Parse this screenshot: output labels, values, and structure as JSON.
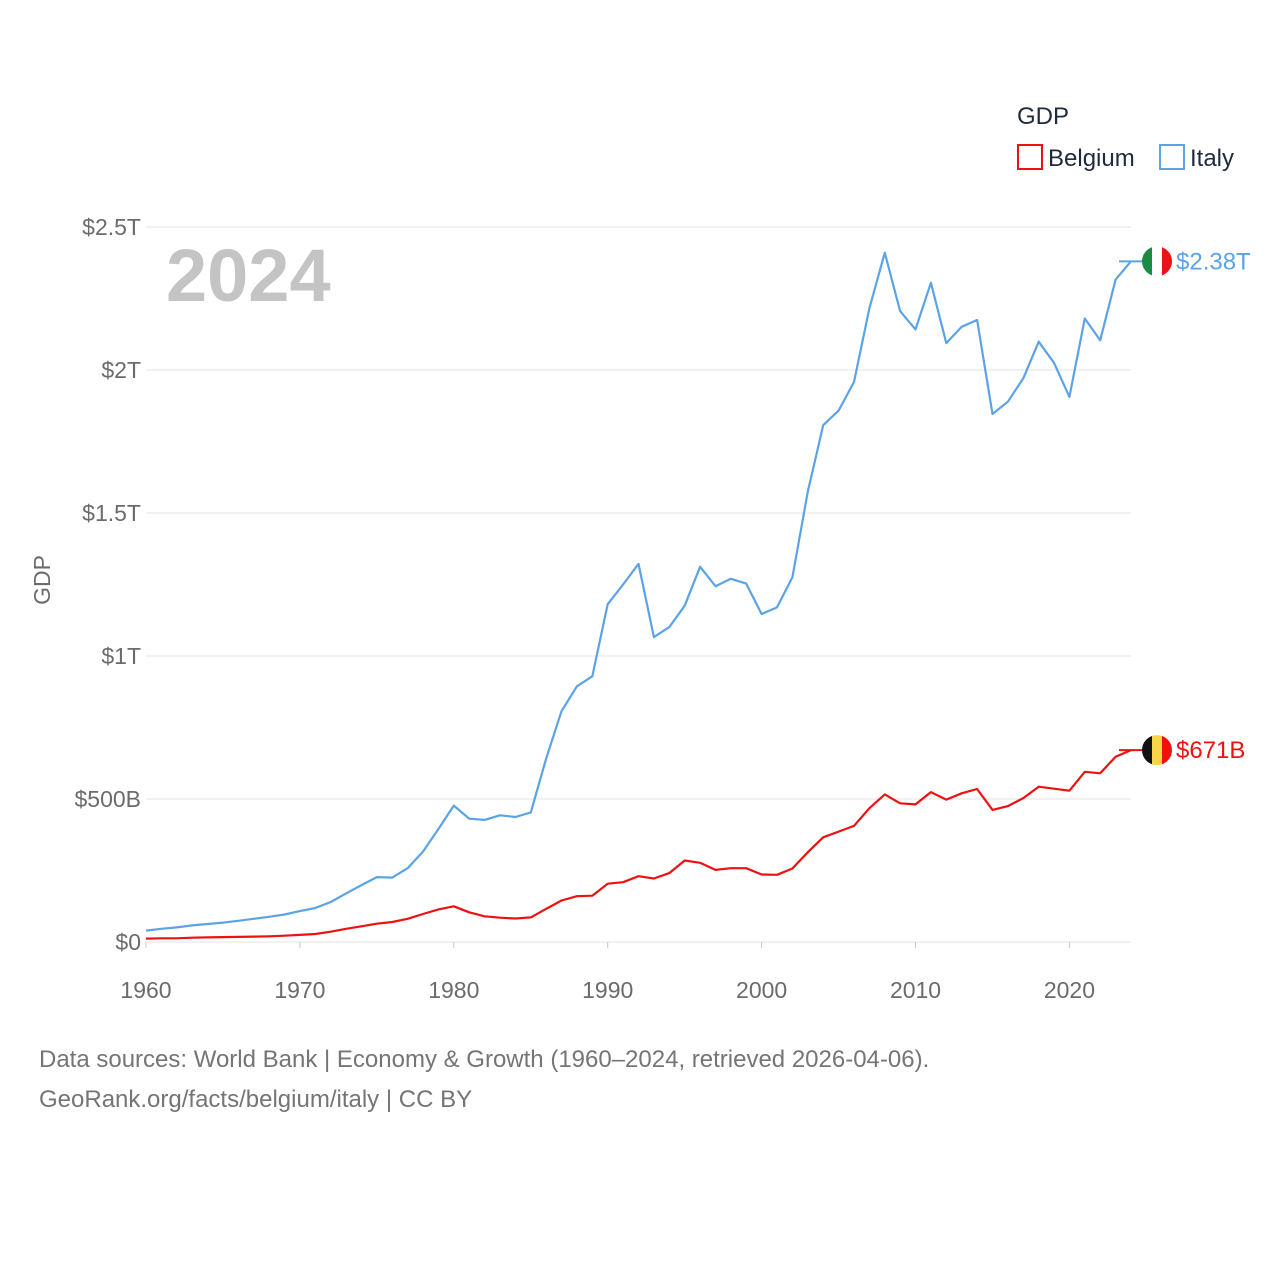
{
  "chart_data": {
    "type": "line",
    "title": "",
    "year_label": "2024",
    "ylabel": "GDP",
    "xlabel": "",
    "xlim": [
      1960,
      2024
    ],
    "ylim": [
      0,
      2500
    ],
    "value_unit": "billion USD",
    "x_ticks": [
      1960,
      1970,
      1980,
      1990,
      2000,
      2010,
      2020
    ],
    "y_ticks": [
      {
        "value": 0,
        "label": "$0"
      },
      {
        "value": 500,
        "label": "$500B"
      },
      {
        "value": 1000,
        "label": "$1T"
      },
      {
        "value": 1500,
        "label": "$1.5T"
      },
      {
        "value": 2000,
        "label": "$2T"
      },
      {
        "value": 2500,
        "label": "$2.5T"
      }
    ],
    "legend": {
      "title": "GDP",
      "position": "top-right"
    },
    "x": [
      1960,
      1961,
      1962,
      1963,
      1964,
      1965,
      1966,
      1967,
      1968,
      1969,
      1970,
      1971,
      1972,
      1973,
      1974,
      1975,
      1976,
      1977,
      1978,
      1979,
      1980,
      1981,
      1982,
      1983,
      1984,
      1985,
      1986,
      1987,
      1988,
      1989,
      1990,
      1991,
      1992,
      1993,
      1994,
      1995,
      1996,
      1997,
      1998,
      1999,
      2000,
      2001,
      2002,
      2003,
      2004,
      2005,
      2006,
      2007,
      2008,
      2009,
      2010,
      2011,
      2012,
      2013,
      2014,
      2015,
      2016,
      2017,
      2018,
      2019,
      2020,
      2021,
      2022,
      2023,
      2024
    ],
    "series": [
      {
        "name": "Belgium",
        "color": "#ee1111",
        "end_label": "$671B",
        "values": [
          12,
          13,
          13,
          15,
          16,
          17,
          18,
          19,
          20,
          22,
          25,
          28,
          36,
          46,
          55,
          64,
          70,
          81,
          98,
          114,
          125,
          104,
          90,
          85,
          82,
          86,
          116,
          145,
          160,
          162,
          204,
          209,
          230,
          222,
          241,
          285,
          277,
          252,
          258,
          258,
          236,
          235,
          257,
          314,
          366,
          386,
          406,
          468,
          516,
          485,
          481,
          524,
          498,
          520,
          535,
          462,
          475,
          503,
          543,
          536,
          529,
          595,
          590,
          648,
          671
        ]
      },
      {
        "name": "Italy",
        "color": "#5ba3e6",
        "end_label": "$2.38T",
        "values": [
          40,
          46,
          51,
          58,
          63,
          68,
          74,
          81,
          88,
          96,
          108,
          119,
          140,
          170,
          199,
          227,
          225,
          258,
          316,
          395,
          477,
          431,
          427,
          443,
          437,
          453,
          642,
          807,
          894,
          929,
          1181,
          1250,
          1322,
          1066,
          1101,
          1176,
          1312,
          1244,
          1270,
          1253,
          1147,
          1170,
          1275,
          1575,
          1807,
          1858,
          1958,
          2216,
          2410,
          2206,
          2142,
          2305,
          2094,
          2151,
          2175,
          1846,
          1889,
          1971,
          2099,
          2025,
          1906,
          2180,
          2104,
          2316,
          2380
        ]
      }
    ],
    "flag_colors": {
      "Belgium": [
        "#111111",
        "#f7d448",
        "#ee1111"
      ],
      "Italy": [
        "#1b8a45",
        "#ffffff",
        "#ee1111"
      ]
    }
  },
  "footer": {
    "line1": "Data sources: World Bank | Economy & Growth (1960–2024, retrieved 2026-04-06).",
    "line2": "GeoRank.org/facts/belgium/italy | CC BY"
  }
}
